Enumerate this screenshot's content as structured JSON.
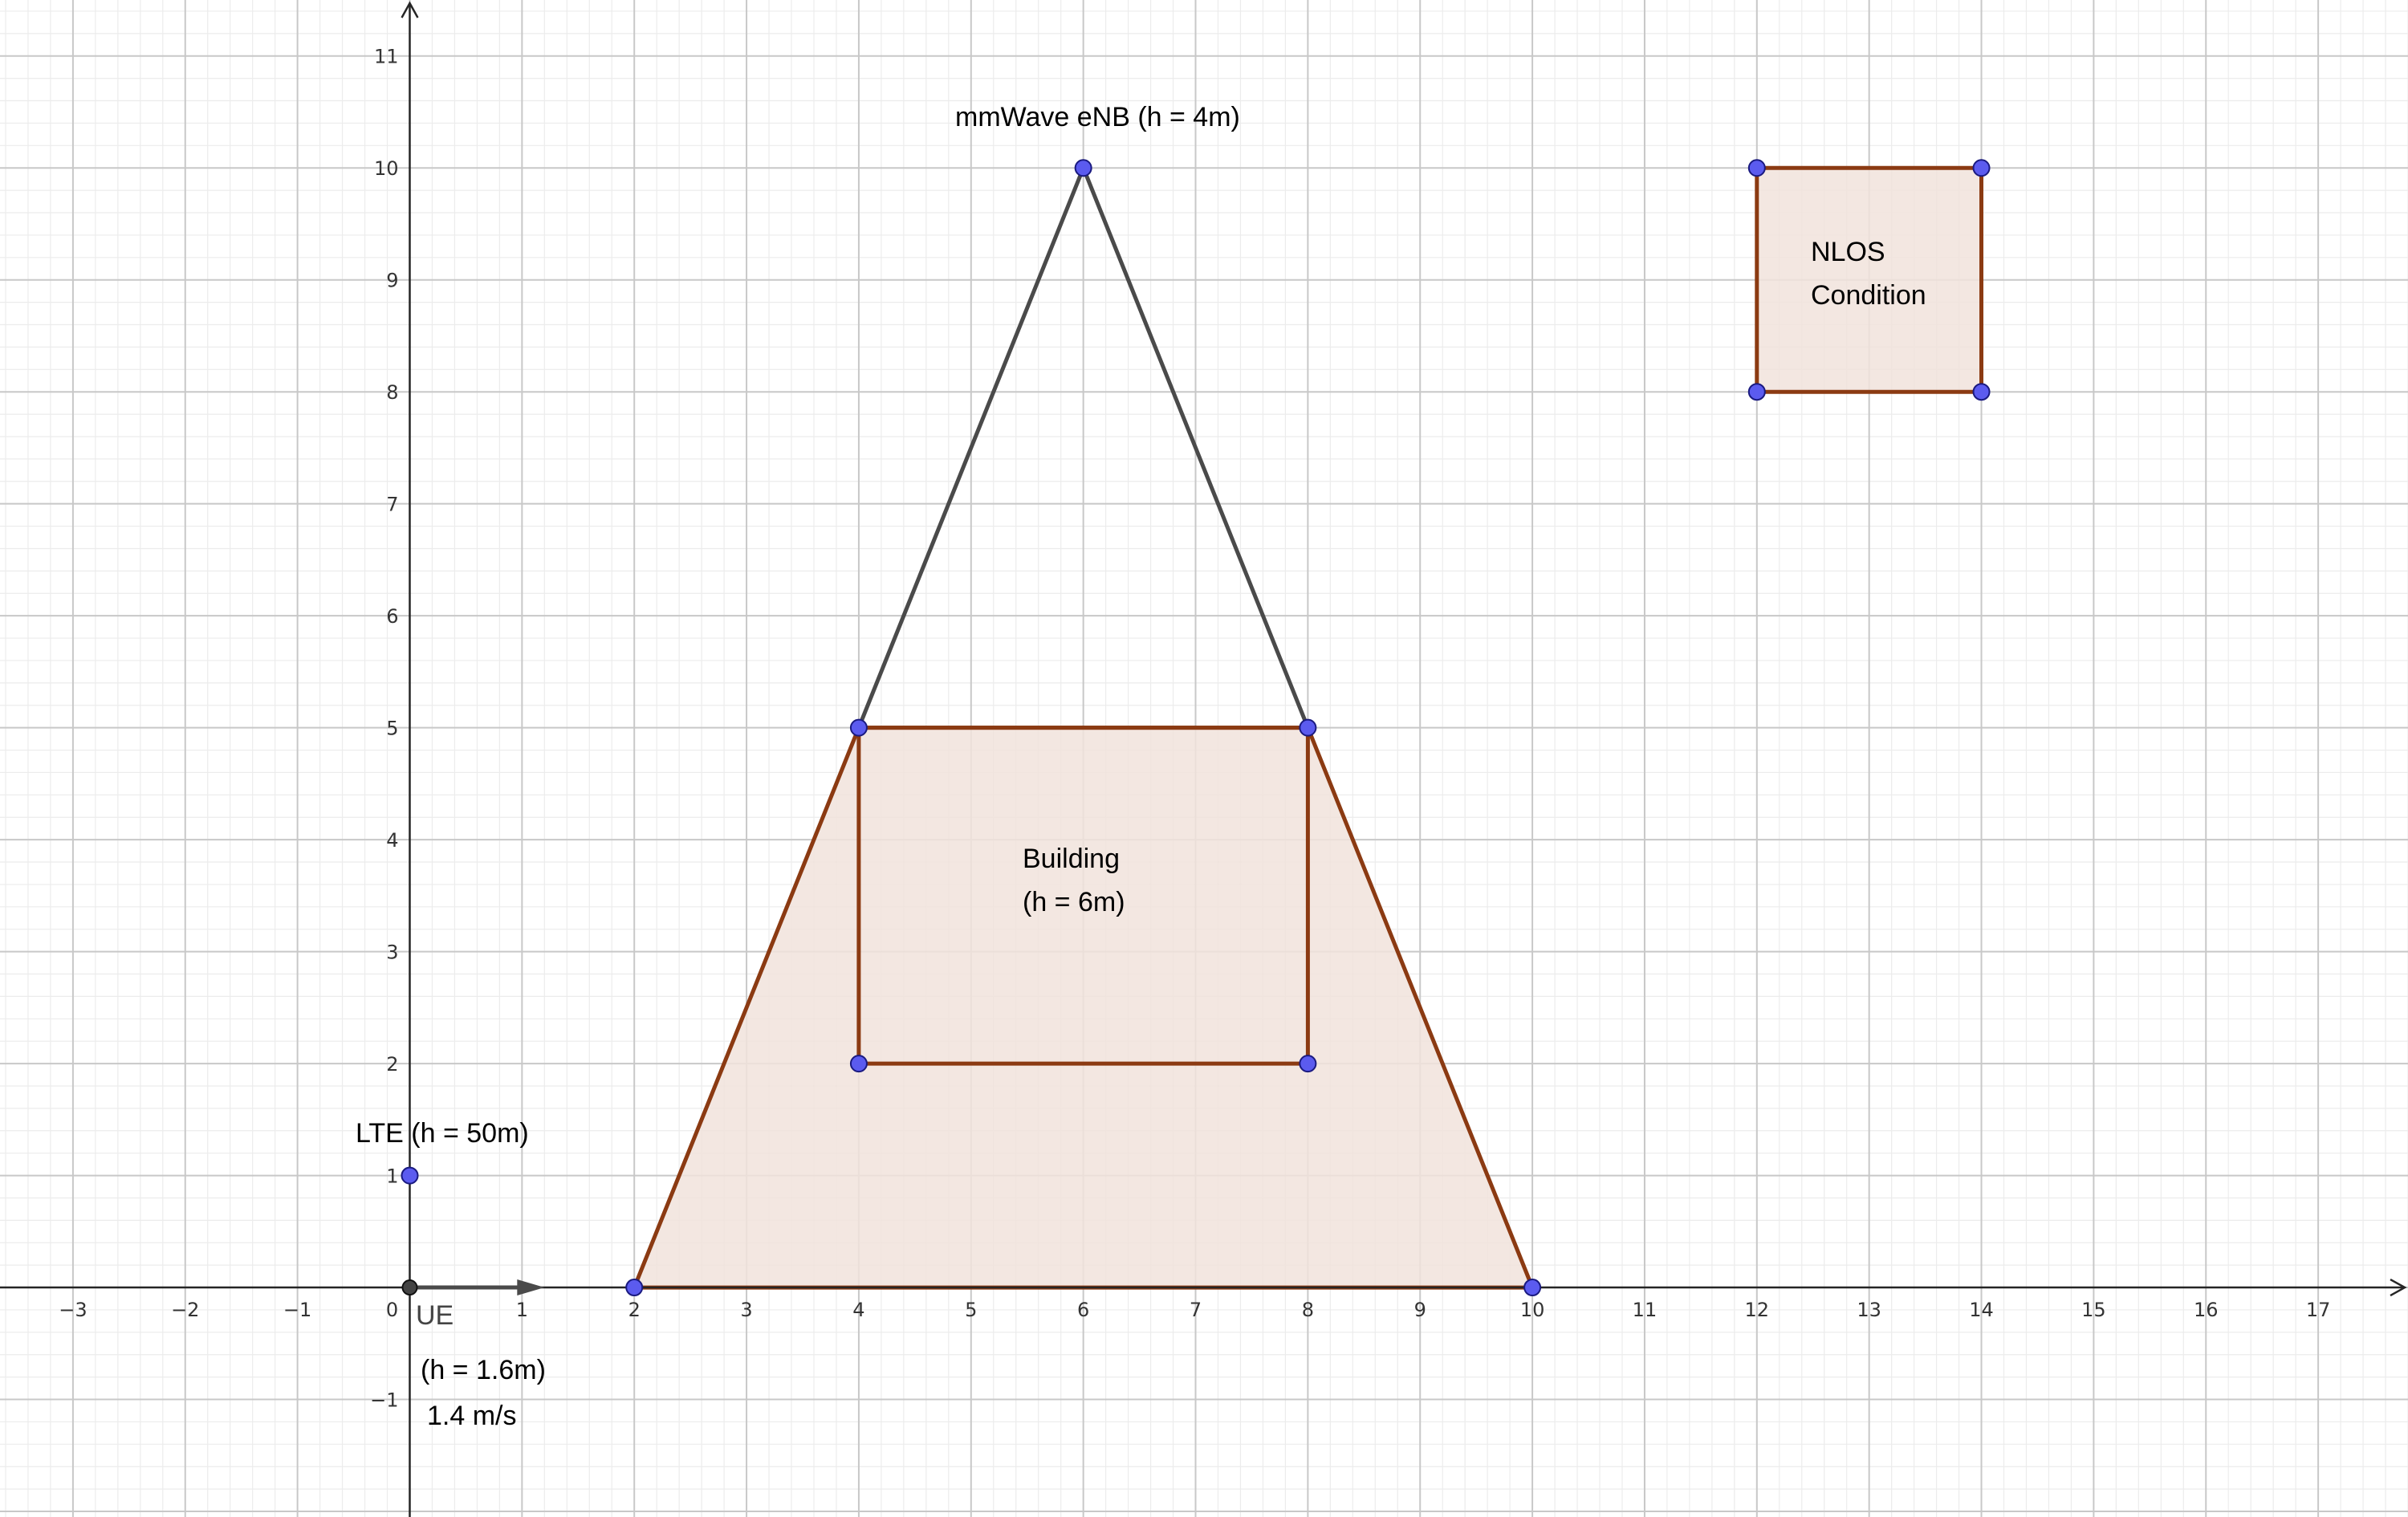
{
  "axes": {
    "x_range": [
      -3.65,
      17.8
    ],
    "y_range": [
      -2.05,
      11.5
    ],
    "x_ticks": [
      -3,
      -2,
      -1,
      0,
      1,
      2,
      3,
      4,
      5,
      6,
      7,
      8,
      9,
      10,
      11,
      12,
      13,
      14,
      15,
      16,
      17
    ],
    "y_ticks": [
      -1,
      1,
      2,
      3,
      4,
      5,
      6,
      7,
      8,
      9,
      10,
      11
    ],
    "x_tick_labels": [
      "−3",
      "−2",
      "−1",
      "0",
      "1",
      "2",
      "3",
      "4",
      "5",
      "6",
      "7",
      "8",
      "9",
      "10",
      "11",
      "12",
      "13",
      "14",
      "15",
      "16",
      "17"
    ],
    "y_tick_labels": [
      "−1",
      "1",
      "2",
      "3",
      "4",
      "5",
      "6",
      "7",
      "8",
      "9",
      "10",
      "11"
    ],
    "grid_major": true,
    "grid_minor_per_unit": 5
  },
  "colors": {
    "grid_major": "#c8c8c8",
    "grid_minor": "#ececec",
    "axis": "#252525",
    "shape_stroke": "#8b3a12",
    "shape_fill": "#f1e3dc",
    "triangle_stroke": "#4a4a4a",
    "point_fill": "#5b5bef",
    "point_stroke": "#1a1a80",
    "origin_fill": "#444444"
  },
  "shapes": {
    "trapezoid": [
      [
        2,
        0
      ],
      [
        4,
        5
      ],
      [
        8,
        5
      ],
      [
        10,
        0
      ]
    ],
    "triangle": [
      [
        4,
        5
      ],
      [
        6,
        10
      ],
      [
        8,
        5
      ]
    ],
    "building": [
      [
        4,
        2
      ],
      [
        4,
        5
      ],
      [
        8,
        5
      ],
      [
        8,
        2
      ]
    ],
    "nlos": [
      [
        12,
        8
      ],
      [
        12,
        10
      ],
      [
        14,
        10
      ],
      [
        14,
        8
      ]
    ],
    "points": [
      [
        2,
        0
      ],
      [
        10,
        0
      ],
      [
        4,
        5
      ],
      [
        8,
        5
      ],
      [
        6,
        10
      ],
      [
        4,
        2
      ],
      [
        8,
        2
      ],
      [
        12,
        8
      ],
      [
        12,
        10
      ],
      [
        14,
        8
      ],
      [
        14,
        10
      ],
      [
        0,
        1
      ]
    ],
    "ue_origin": [
      0,
      0
    ],
    "ue_vector_end": [
      1.2,
      0
    ]
  },
  "labels": {
    "enb": "mmWave eNB (h = 4m)",
    "building_line1": "Building",
    "building_line2": "(h = 6m)",
    "nlos_line1": "NLOS",
    "nlos_line2": "Condition",
    "lte": "LTE (h = 50m)",
    "ue": "UE",
    "ue_height": "(h = 1.6m)",
    "ue_speed": "1.4 m/s"
  }
}
